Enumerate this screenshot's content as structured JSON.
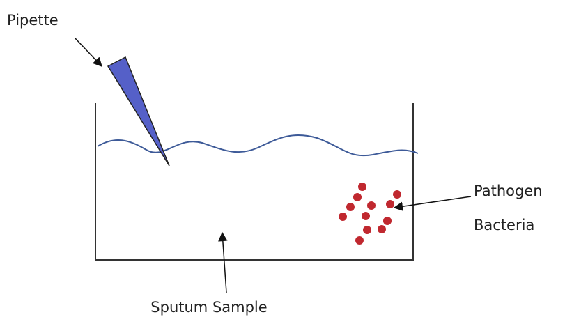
{
  "labels": {
    "pipette": "Pipette",
    "bacteria": [
      "Pathogen",
      "Bacteria"
    ],
    "sample": "Sputum Sample"
  }
}
